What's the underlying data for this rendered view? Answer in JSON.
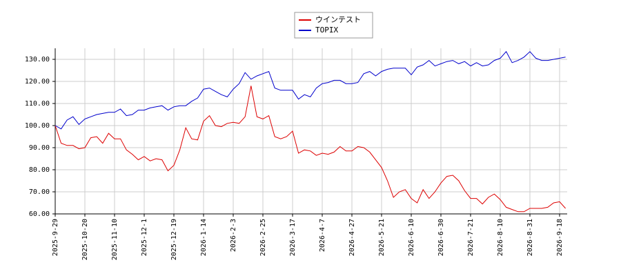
{
  "chart_data": {
    "type": "line",
    "categories": [
      "2025-9-29",
      null,
      null,
      null,
      null,
      "2025-10-20",
      null,
      null,
      null,
      null,
      "2025-11-10",
      null,
      null,
      null,
      null,
      "2025-12-1",
      null,
      null,
      null,
      null,
      "2025-12-19",
      null,
      null,
      null,
      null,
      "2026-1-14",
      null,
      null,
      null,
      null,
      "2026-2-3",
      null,
      null,
      null,
      null,
      "2026-2-25",
      null,
      null,
      null,
      null,
      "2026-3-17",
      null,
      null,
      null,
      null,
      "2026-4-7",
      null,
      null,
      null,
      null,
      "2026-4-27",
      null,
      null,
      null,
      null,
      "2026-5-21",
      null,
      null,
      null,
      null,
      "2026-6-10",
      null,
      null,
      null,
      null,
      "2026-6-30",
      null,
      null,
      null,
      null,
      "2026-7-21",
      null,
      null,
      null,
      null,
      "2026-8-10",
      null,
      null,
      null,
      null,
      "2026-8-31",
      null,
      null,
      null,
      null,
      "2026-9-18",
      null
    ],
    "series": [
      {
        "name": "ウインテスト",
        "color": "#dd0000",
        "values": [
          100,
          92,
          91,
          91,
          89.5,
          90,
          94.5,
          95,
          92,
          96.5,
          94,
          94,
          89,
          87,
          84.5,
          86,
          84,
          85,
          84.5,
          79.5,
          82,
          89,
          99,
          94,
          93.5,
          102,
          104.5,
          100,
          99.5,
          101,
          101.5,
          101,
          104,
          118,
          104,
          103,
          104.5,
          95,
          94,
          95,
          97.5,
          87.5,
          89,
          88.5,
          86.5,
          87.5,
          87,
          88,
          90.5,
          88.5,
          88.5,
          90.5,
          90,
          88,
          84.5,
          81,
          75,
          67.5,
          70,
          71,
          67,
          65,
          71,
          67,
          70,
          74,
          77,
          77.5,
          75,
          70.5,
          67,
          67,
          64.5,
          67.5,
          69,
          66.5,
          63,
          62,
          61,
          61,
          62.5,
          62.5,
          62.5,
          63,
          65,
          65.5,
          62.5
        ]
      },
      {
        "name": "TOPIX",
        "color": "#0000cc",
        "values": [
          100,
          98.5,
          102.5,
          104,
          100.5,
          103,
          104,
          105,
          105.5,
          106,
          106,
          107.5,
          104.5,
          105,
          107,
          107,
          108,
          108.5,
          109,
          107,
          108.5,
          109,
          109,
          111,
          112.5,
          116.5,
          117,
          115.5,
          114,
          113,
          116.5,
          119,
          124,
          121,
          122.5,
          123.5,
          124.5,
          117,
          116,
          116,
          116,
          112,
          114,
          113,
          117,
          119,
          119.5,
          120.5,
          120.5,
          119,
          119,
          119.5,
          123.5,
          124.5,
          122.5,
          124.5,
          125.5,
          126,
          126,
          126,
          123,
          126.5,
          127.5,
          129.5,
          127,
          128,
          129,
          129.5,
          128,
          129,
          127,
          128.5,
          127,
          127.5,
          129.5,
          130.5,
          133.5,
          128.5,
          129.5,
          131,
          133.5,
          130.5,
          129.5,
          129.5,
          130,
          130.5,
          131
        ]
      }
    ],
    "ylim": [
      60,
      135
    ],
    "yticks": [
      {
        "value": 60,
        "label": "60.00"
      },
      {
        "value": 70,
        "label": "70.00"
      },
      {
        "value": 80,
        "label": "80.00"
      },
      {
        "value": 90,
        "label": "90.00"
      },
      {
        "value": 100,
        "label": "100.00"
      },
      {
        "value": 110,
        "label": "110.00"
      },
      {
        "value": 120,
        "label": "120.00"
      },
      {
        "value": 130,
        "label": "130.00"
      }
    ],
    "grid": true,
    "legend": "top"
  }
}
